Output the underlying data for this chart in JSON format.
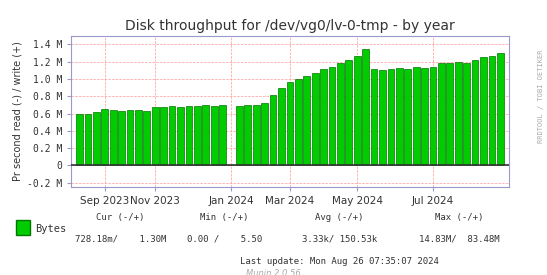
{
  "title": "Disk throughput for /dev/vg0/lv-0-tmp - by year",
  "ylabel": "Pr second read (-) / write (+)",
  "background_color": "#ffffff",
  "plot_bg_color": "#ffffff",
  "grid_color": "#ff9999",
  "axis_color": "#aaaaaa",
  "title_color": "#333333",
  "bar_color": "#00cc00",
  "bar_edge_color": "#007700",
  "ylim": [
    -0.25,
    1.5
  ],
  "yticks": [
    -0.2,
    0.0,
    0.2,
    0.4,
    0.6,
    0.8,
    1.0,
    1.2,
    1.4
  ],
  "ytick_labels": [
    "-0.2 M",
    "0",
    "0.2 M",
    "0.4 M",
    "0.6 M",
    "0.8 M",
    "1.0 M",
    "1.2 M",
    "1.4 M"
  ],
  "xtick_labels": [
    "Sep 2023",
    "Nov 2023",
    "Jan 2024",
    "Mar 2024",
    "May 2024",
    "Jul 2024"
  ],
  "legend_label": "Bytes",
  "footer_left": "Cur (-/+)",
  "footer_cur": "728.18m/    1.30M",
  "footer_min_label": "Min (-/+)",
  "footer_min": "0.00 /    5.50",
  "footer_avg_label": "Avg (-/+)",
  "footer_avg": "3.33k/ 150.53k",
  "footer_max_label": "Max (-/+)",
  "footer_max": "14.83M/  83.48M",
  "footer_update": "Last update: Mon Aug 26 07:35:07 2024",
  "munin_label": "Munin 2.0.56",
  "right_label": "RRDTOOL / TOBI OETIKER",
  "bar_x": [
    0,
    1,
    2,
    3,
    4,
    5,
    6,
    7,
    8,
    9,
    10,
    11,
    12,
    13,
    14,
    15,
    16,
    17,
    18,
    19,
    20,
    21,
    22,
    23,
    24,
    25,
    26,
    27,
    28,
    29,
    30,
    31,
    32,
    33,
    34,
    35,
    36,
    37,
    38,
    39,
    40,
    41,
    42,
    43,
    44,
    45,
    46,
    47,
    48,
    49,
    50
  ],
  "bar_heights": [
    0.6,
    0.6,
    0.62,
    0.65,
    0.64,
    0.63,
    0.64,
    0.64,
    0.63,
    0.67,
    0.67,
    0.69,
    0.68,
    0.69,
    0.69,
    0.7,
    0.69,
    0.7,
    0.01,
    0.69,
    0.7,
    0.7,
    0.72,
    0.82,
    0.9,
    0.97,
    1.0,
    1.03,
    1.07,
    1.11,
    1.14,
    1.18,
    1.22,
    1.27,
    1.35,
    1.12,
    1.1,
    1.11,
    1.13,
    1.12,
    1.14,
    1.13,
    1.14,
    1.18,
    1.18,
    1.2,
    1.19,
    1.22,
    1.25,
    1.27,
    1.3
  ],
  "xtick_positions": [
    3,
    9,
    18,
    25,
    33,
    42
  ],
  "zero_line_color": "#333333"
}
